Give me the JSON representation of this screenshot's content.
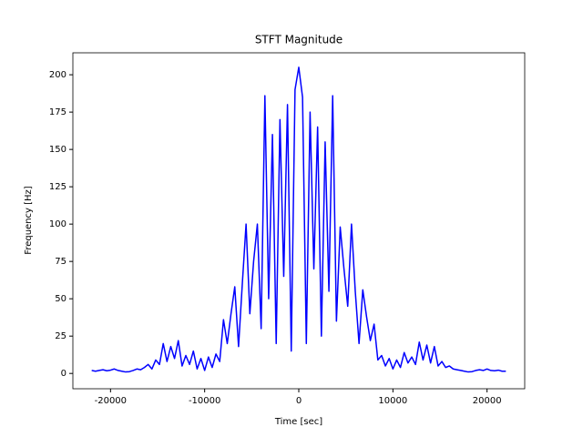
{
  "chart_data": {
    "type": "line",
    "title": "STFT Magnitude",
    "x_label": "Time [sec]",
    "y_label": "Frequency [Hz]",
    "color": "#0000ff",
    "x": [
      -22000,
      -21600,
      -21200,
      -20800,
      -20400,
      -20000,
      -19600,
      -19200,
      -18800,
      -18400,
      -18000,
      -17600,
      -17200,
      -16800,
      -16400,
      -16000,
      -15600,
      -15200,
      -14800,
      -14400,
      -14000,
      -13600,
      -13200,
      -12800,
      -12400,
      -12000,
      -11600,
      -11200,
      -10800,
      -10400,
      -10000,
      -9600,
      -9200,
      -8800,
      -8400,
      -8000,
      -7600,
      -7200,
      -6800,
      -6400,
      -6000,
      -5600,
      -5200,
      -4800,
      -4400,
      -4000,
      -3600,
      -3200,
      -2800,
      -2400,
      -2000,
      -1600,
      -1200,
      -800,
      -400,
      0,
      400,
      800,
      1200,
      1600,
      2000,
      2400,
      2800,
      3200,
      3600,
      4000,
      4400,
      4800,
      5200,
      5600,
      6000,
      6400,
      6800,
      7200,
      7600,
      8000,
      8400,
      8800,
      9200,
      9600,
      10000,
      10400,
      10800,
      11200,
      11600,
      12000,
      12400,
      12800,
      13200,
      13600,
      14000,
      14400,
      14800,
      15200,
      15600,
      16000,
      16400,
      16800,
      17200,
      17600,
      18000,
      18400,
      18800,
      19200,
      19600,
      20000,
      20400,
      20800,
      21200,
      21600,
      22000
    ],
    "values": [
      2,
      1.5,
      2,
      2.5,
      1.8,
      2.2,
      3,
      2,
      1.5,
      1,
      1.2,
      2,
      3,
      2.5,
      4,
      6,
      3,
      9,
      6,
      20,
      8,
      18,
      10,
      22,
      5,
      12,
      6,
      15,
      3,
      10,
      2,
      11,
      4,
      13,
      8,
      36,
      20,
      40,
      58,
      18,
      60,
      100,
      40,
      75,
      100,
      30,
      186,
      50,
      160,
      20,
      170,
      65,
      180,
      15,
      190,
      205,
      185,
      20,
      175,
      70,
      165,
      25,
      155,
      55,
      186,
      35,
      98,
      70,
      45,
      100,
      55,
      20,
      56,
      38,
      22,
      33,
      9,
      12,
      5,
      10,
      3,
      9,
      4,
      14,
      7,
      11,
      6,
      21,
      9,
      19,
      7,
      18,
      5,
      8,
      4,
      5,
      3,
      2.5,
      2,
      1.5,
      1,
      1.2,
      2,
      2.5,
      2,
      3,
      2,
      1.8,
      2.2,
      1.5,
      1.5
    ],
    "xlim": [
      -24000,
      24000
    ],
    "ylim": [
      -10.25,
      214.7
    ],
    "xticks": [
      -20000,
      -10000,
      0,
      10000,
      20000
    ],
    "yticks": [
      0,
      25,
      50,
      75,
      100,
      125,
      150,
      175,
      200
    ]
  }
}
